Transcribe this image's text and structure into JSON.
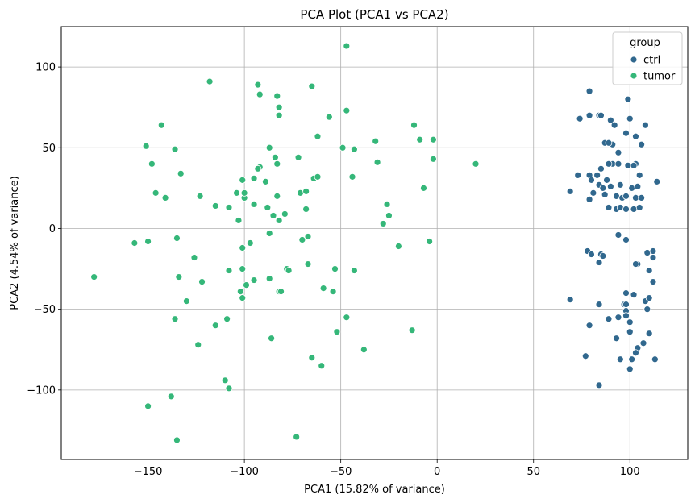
{
  "chart_data": {
    "type": "scatter",
    "title": "PCA Plot (PCA1 vs PCA2)",
    "xlabel": "PCA1 (15.82% of variance)",
    "ylabel": "PCA2 (4.54% of variance)",
    "xlim": [
      -195,
      130
    ],
    "ylim": [
      -143,
      125
    ],
    "xticks": [
      -150,
      -100,
      -50,
      0,
      50,
      100
    ],
    "yticks": [
      -100,
      -50,
      0,
      50,
      100
    ],
    "xtick_labels": [
      "−150",
      "−100",
      "−50",
      "0",
      "50",
      "100"
    ],
    "ytick_labels": [
      "−100",
      "−50",
      "0",
      "50",
      "100"
    ],
    "grid": true,
    "legend": {
      "title": "group",
      "placement": "top-right"
    },
    "series": [
      {
        "name": "ctrl",
        "color": "#31688e",
        "points": [
          [
            79,
            85
          ],
          [
            99,
            80
          ],
          [
            74,
            68
          ],
          [
            79,
            70
          ],
          [
            84,
            70
          ],
          [
            85,
            70
          ],
          [
            90,
            67
          ],
          [
            92,
            64
          ],
          [
            100,
            68
          ],
          [
            108,
            64
          ],
          [
            98,
            59
          ],
          [
            103,
            57
          ],
          [
            87,
            53
          ],
          [
            91,
            52
          ],
          [
            89,
            53
          ],
          [
            94,
            47
          ],
          [
            106,
            52
          ],
          [
            91,
            40
          ],
          [
            89,
            40
          ],
          [
            85,
            37
          ],
          [
            79,
            33
          ],
          [
            73,
            33
          ],
          [
            83,
            33
          ],
          [
            80,
            30
          ],
          [
            94,
            40
          ],
          [
            99,
            39
          ],
          [
            103,
            40
          ],
          [
            102,
            39
          ],
          [
            105,
            33
          ],
          [
            114,
            29
          ],
          [
            88,
            30
          ],
          [
            84,
            27
          ],
          [
            86,
            25
          ],
          [
            90,
            26
          ],
          [
            95,
            27
          ],
          [
            101,
            25
          ],
          [
            104,
            26
          ],
          [
            69,
            23
          ],
          [
            81,
            22
          ],
          [
            87,
            21
          ],
          [
            93,
            20
          ],
          [
            96,
            19
          ],
          [
            98,
            20
          ],
          [
            103,
            19
          ],
          [
            106,
            19
          ],
          [
            79,
            18
          ],
          [
            89,
            13
          ],
          [
            93,
            12
          ],
          [
            95,
            13
          ],
          [
            98,
            12
          ],
          [
            102,
            12
          ],
          [
            105,
            13
          ],
          [
            78,
            -14
          ],
          [
            80,
            -16
          ],
          [
            85,
            -16
          ],
          [
            86,
            -17
          ],
          [
            84,
            -21
          ],
          [
            94,
            -4
          ],
          [
            98,
            -7
          ],
          [
            104,
            -22
          ],
          [
            103,
            -22
          ],
          [
            109,
            -15
          ],
          [
            112,
            -14
          ],
          [
            112,
            -18
          ],
          [
            110,
            -26
          ],
          [
            112,
            -33
          ],
          [
            98,
            -40
          ],
          [
            102,
            -41
          ],
          [
            97,
            -47
          ],
          [
            98,
            -47
          ],
          [
            98,
            -51
          ],
          [
            98,
            -54
          ],
          [
            108,
            -45
          ],
          [
            110,
            -43
          ],
          [
            109,
            -50
          ],
          [
            69,
            -44
          ],
          [
            84,
            -47
          ],
          [
            79,
            -60
          ],
          [
            89,
            -56
          ],
          [
            94,
            -55
          ],
          [
            100,
            -58
          ],
          [
            93,
            -68
          ],
          [
            100,
            -64
          ],
          [
            110,
            -65
          ],
          [
            107,
            -71
          ],
          [
            104,
            -74
          ],
          [
            103,
            -77
          ],
          [
            101,
            -81
          ],
          [
            113,
            -81
          ],
          [
            95,
            -81
          ],
          [
            77,
            -79
          ],
          [
            100,
            -87
          ],
          [
            84,
            -97
          ]
        ]
      },
      {
        "name": "tumor",
        "color": "#35b779",
        "points": [
          [
            -47,
            113
          ],
          [
            -118,
            91
          ],
          [
            -93,
            89
          ],
          [
            -65,
            88
          ],
          [
            -92,
            83
          ],
          [
            -83,
            82
          ],
          [
            -82,
            75
          ],
          [
            -82,
            70
          ],
          [
            -47,
            73
          ],
          [
            -143,
            64
          ],
          [
            -12,
            64
          ],
          [
            -151,
            51
          ],
          [
            -136,
            49
          ],
          [
            -87,
            50
          ],
          [
            -84,
            44
          ],
          [
            -83,
            40
          ],
          [
            -62,
            57
          ],
          [
            -56,
            69
          ],
          [
            -49,
            50
          ],
          [
            -43,
            49
          ],
          [
            -32,
            54
          ],
          [
            -9,
            55
          ],
          [
            -2,
            55
          ],
          [
            -2,
            43
          ],
          [
            20,
            40
          ],
          [
            -148,
            40
          ],
          [
            -133,
            34
          ],
          [
            -92,
            38
          ],
          [
            -93,
            37
          ],
          [
            -72,
            44
          ],
          [
            -64,
            31
          ],
          [
            -62,
            32
          ],
          [
            -44,
            32
          ],
          [
            -31,
            41
          ],
          [
            -146,
            22
          ],
          [
            -141,
            19
          ],
          [
            -123,
            20
          ],
          [
            -108,
            13
          ],
          [
            -115,
            14
          ],
          [
            -104,
            22
          ],
          [
            -101,
            30
          ],
          [
            -100,
            19
          ],
          [
            -100,
            22
          ],
          [
            -95,
            31
          ],
          [
            -89,
            29
          ],
          [
            -95,
            15
          ],
          [
            -88,
            13
          ],
          [
            -83,
            20
          ],
          [
            -85,
            8
          ],
          [
            -82,
            5
          ],
          [
            -79,
            9
          ],
          [
            -71,
            22
          ],
          [
            -68,
            12
          ],
          [
            -68,
            23
          ],
          [
            -26,
            15
          ],
          [
            -7,
            25
          ],
          [
            -25,
            8
          ],
          [
            -103,
            5
          ],
          [
            -157,
            -9
          ],
          [
            -150,
            -8
          ],
          [
            -135,
            -6
          ],
          [
            -101,
            -12
          ],
          [
            -87,
            -3
          ],
          [
            -97,
            -9
          ],
          [
            -70,
            -7
          ],
          [
            -67,
            -5
          ],
          [
            -28,
            3
          ],
          [
            -20,
            -11
          ],
          [
            -4,
            -8
          ],
          [
            -126,
            -18
          ],
          [
            -134,
            -30
          ],
          [
            -122,
            -33
          ],
          [
            -108,
            -26
          ],
          [
            -101,
            -25
          ],
          [
            -99,
            -35
          ],
          [
            -102,
            -39
          ],
          [
            -101,
            -43
          ],
          [
            -95,
            -32
          ],
          [
            -87,
            -31
          ],
          [
            -78,
            -25
          ],
          [
            -77,
            -26
          ],
          [
            -82,
            -39
          ],
          [
            -81,
            -39
          ],
          [
            -67,
            -22
          ],
          [
            -59,
            -37
          ],
          [
            -54,
            -39
          ],
          [
            -53,
            -25
          ],
          [
            -43,
            -26
          ],
          [
            -130,
            -45
          ],
          [
            -136,
            -56
          ],
          [
            -115,
            -60
          ],
          [
            -109,
            -56
          ],
          [
            -124,
            -72
          ],
          [
            -86,
            -68
          ],
          [
            -47,
            -55
          ],
          [
            -52,
            -64
          ],
          [
            -13,
            -63
          ],
          [
            -65,
            -80
          ],
          [
            -60,
            -85
          ],
          [
            -38,
            -75
          ],
          [
            -110,
            -94
          ],
          [
            -108,
            -99
          ],
          [
            -138,
            -104
          ],
          [
            -150,
            -110
          ],
          [
            -135,
            -131
          ],
          [
            -73,
            -129
          ],
          [
            -178,
            -30
          ]
        ]
      }
    ]
  }
}
